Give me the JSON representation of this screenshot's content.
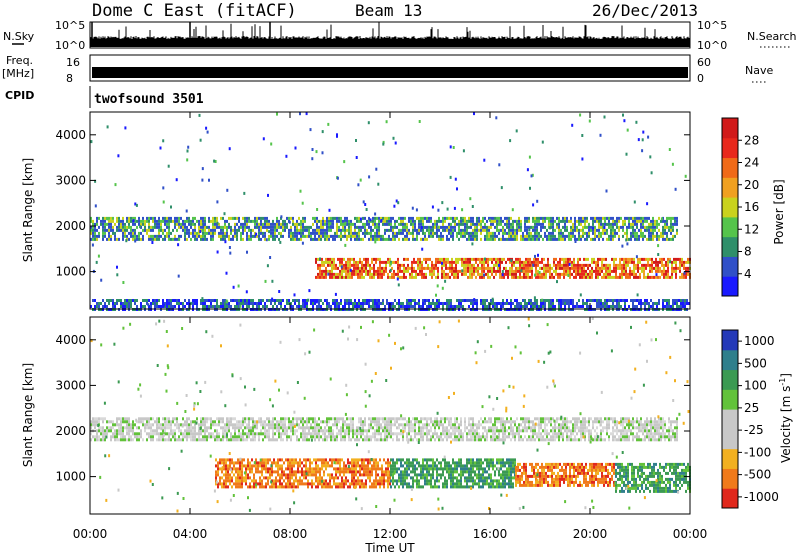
{
  "header": {
    "station": "Dome C East (fitACF)",
    "beam": "Beam 13",
    "date": "26/Dec/2013"
  },
  "panels": {
    "nsky": {
      "label": "N.Sky",
      "tick_top": "10^5",
      "tick_bottom": "10^0"
    },
    "nsearch": {
      "label": "N.Search",
      "tick_top": "10^5",
      "tick_bottom": "10^0"
    },
    "freq": {
      "label": "Freq.",
      "unit": "[MHz]",
      "tick_top": "16",
      "tick_bottom": "8"
    },
    "nave": {
      "label": "Nave",
      "tick_top": "60",
      "tick_bottom": "0"
    },
    "cpid": {
      "label": "CPID",
      "value": "twofsound 3501"
    }
  },
  "colorbars": {
    "power": {
      "label": "Power [dB]",
      "ticks": [
        "4",
        "8",
        "12",
        "16",
        "20",
        "24",
        "28"
      ],
      "colors": [
        "#1a1aff",
        "#3050c8",
        "#2f8f6a",
        "#55c44b",
        "#c9d21e",
        "#f0a020",
        "#f06a18",
        "#e8281c",
        "#d11a1a"
      ]
    },
    "velocity": {
      "label": "Velocity [m s",
      "label_sup": "-1",
      "label_end": "]",
      "ticks": [
        "1000",
        "500",
        "100",
        "25",
        "-25",
        "-100",
        "-500",
        "-1000"
      ],
      "colors": [
        "#2439b8",
        "#2f7f8c",
        "#3b9a52",
        "#62c23a",
        "#c8c8c8",
        "#c8c8c8",
        "#f2b020",
        "#f07a1a",
        "#e0281c"
      ]
    }
  },
  "chart_data": [
    {
      "type": "heatmap",
      "name": "Power",
      "ylabel": "Slant Range [km]",
      "yticks": [
        "1000",
        "2000",
        "3000",
        "4000"
      ],
      "ylim": [
        180,
        4500
      ],
      "xlim_hours": [
        0,
        24
      ],
      "grid": false,
      "bands": [
        {
          "range_km": [
            1700,
            2200
          ],
          "hours": [
            0,
            23.5
          ],
          "dominant": "green"
        },
        {
          "range_km": [
            900,
            1300
          ],
          "hours": [
            9,
            24
          ],
          "dominant": "orange-red"
        },
        {
          "range_km": [
            200,
            400
          ],
          "hours": [
            0,
            24
          ],
          "dominant": "blue"
        }
      ]
    },
    {
      "type": "heatmap",
      "name": "Velocity",
      "xlabel": "Time UT",
      "ylabel": "Slant Range [km]",
      "xticks": [
        "00:00",
        "04:00",
        "08:00",
        "12:00",
        "16:00",
        "20:00",
        "00:00"
      ],
      "yticks": [
        "1000",
        "2000",
        "3000",
        "4000"
      ],
      "ylim": [
        180,
        4500
      ],
      "xlim_hours": [
        0,
        24
      ],
      "grid": false,
      "bands": [
        {
          "range_km": [
            1800,
            2300
          ],
          "hours": [
            0,
            23.5
          ],
          "dominant": "grey"
        },
        {
          "range_km": [
            800,
            1400
          ],
          "hours": [
            5,
            12
          ],
          "dominant": "orange"
        },
        {
          "range_km": [
            800,
            1400
          ],
          "hours": [
            12,
            17
          ],
          "dominant": "green"
        },
        {
          "range_km": [
            800,
            1300
          ],
          "hours": [
            17,
            21
          ],
          "dominant": "orange"
        },
        {
          "range_km": [
            700,
            1300
          ],
          "hours": [
            21,
            24
          ],
          "dominant": "green"
        }
      ]
    }
  ]
}
